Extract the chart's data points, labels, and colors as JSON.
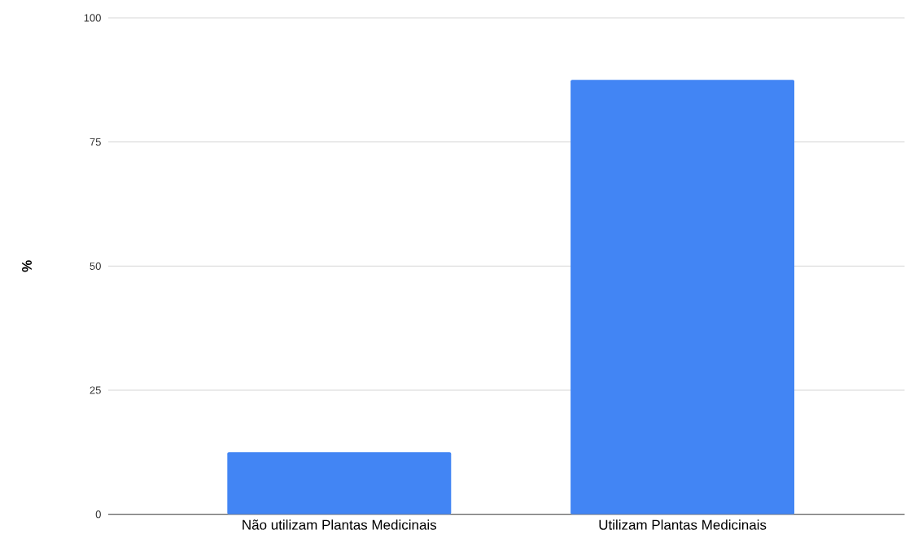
{
  "chart_data": {
    "type": "bar",
    "ylabel": "%",
    "categories": [
      "Não utilizam Plantas Medicinais",
      "Utilizam Plantas Medicinais"
    ],
    "values": [
      12.5,
      87.5
    ],
    "color": "#4285f4",
    "ylim": [
      0,
      100
    ],
    "yticks": [
      0,
      25,
      50,
      75,
      100
    ],
    "grid": "y"
  }
}
